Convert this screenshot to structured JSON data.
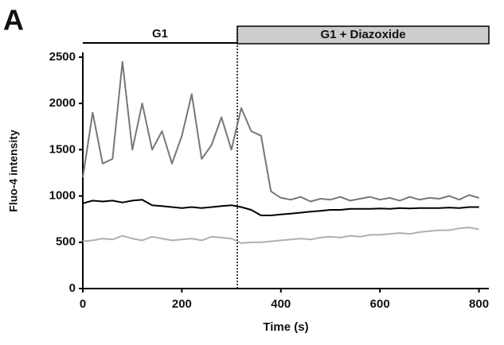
{
  "chart_data": {
    "type": "line",
    "panel_label": "A",
    "xlabel": "Time (s)",
    "ylabel": "Fluo-4 intensity",
    "phases": [
      {
        "label": "G1",
        "start": 0,
        "end": 312
      },
      {
        "label": "G1 + Diazoxide",
        "start": 312,
        "end": 820
      }
    ],
    "x": [
      0,
      20,
      40,
      60,
      80,
      100,
      120,
      140,
      160,
      180,
      200,
      220,
      240,
      260,
      280,
      300,
      320,
      340,
      360,
      380,
      400,
      420,
      440,
      460,
      480,
      500,
      520,
      540,
      560,
      580,
      600,
      620,
      640,
      660,
      680,
      700,
      720,
      740,
      760,
      780,
      800
    ],
    "series": [
      {
        "color": "#777777",
        "values": [
          1200,
          1900,
          1350,
          1400,
          2450,
          1500,
          2000,
          1500,
          1700,
          1350,
          1650,
          2100,
          1400,
          1550,
          1850,
          1500,
          1950,
          1700,
          1650,
          1050,
          980,
          960,
          990,
          940,
          970,
          960,
          990,
          950,
          970,
          990,
          960,
          980,
          950,
          990,
          960,
          980,
          970,
          1000,
          960,
          1010,
          980
        ]
      },
      {
        "color": "#000000",
        "values": [
          920,
          950,
          940,
          950,
          930,
          950,
          960,
          900,
          890,
          880,
          870,
          880,
          870,
          880,
          890,
          900,
          880,
          850,
          790,
          790,
          800,
          810,
          820,
          830,
          840,
          850,
          850,
          860,
          860,
          860,
          865,
          860,
          870,
          865,
          870,
          870,
          870,
          875,
          870,
          880,
          880
        ]
      },
      {
        "color": "#b0b0b0",
        "values": [
          510,
          520,
          540,
          530,
          570,
          540,
          520,
          560,
          540,
          520,
          530,
          540,
          520,
          560,
          550,
          540,
          490,
          500,
          500,
          510,
          520,
          530,
          540,
          530,
          550,
          560,
          550,
          570,
          560,
          580,
          580,
          590,
          600,
          590,
          610,
          620,
          630,
          630,
          650,
          660,
          640
        ]
      }
    ],
    "xlim": [
      0,
      820
    ],
    "ylim": [
      0,
      2550
    ],
    "xticks": [
      0,
      200,
      400,
      600,
      800
    ],
    "yticks": [
      0,
      500,
      1000,
      1500,
      2000,
      2500
    ]
  }
}
